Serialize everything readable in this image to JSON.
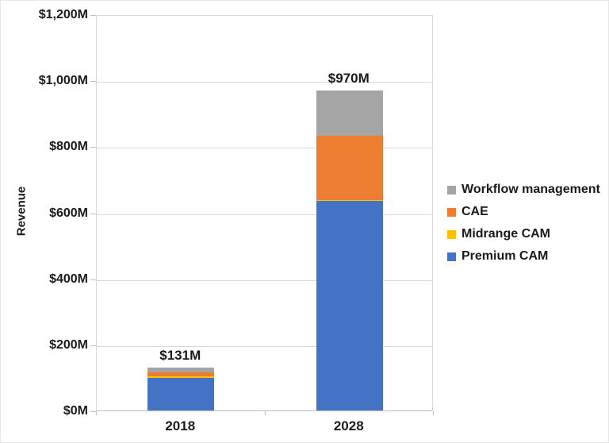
{
  "chart_data": {
    "type": "bar",
    "stacked": true,
    "title": "",
    "xlabel": "",
    "ylabel": "Revenue",
    "categories": [
      "2018",
      "2028"
    ],
    "series": [
      {
        "name": "Premium CAM",
        "color": "#4472C4",
        "values": [
          99,
          635
        ]
      },
      {
        "name": "Midrange CAM",
        "color": "#FFC000",
        "values": [
          4,
          3
        ]
      },
      {
        "name": "CAE",
        "color": "#ED7D31",
        "values": [
          12,
          194
        ]
      },
      {
        "name": "Workflow management",
        "color": "#A5A5A5",
        "values": [
          16,
          138
        ]
      }
    ],
    "totals": [
      131,
      970
    ],
    "total_labels": [
      "$131M",
      "$970M"
    ],
    "ylim": [
      0,
      1200
    ],
    "ytick_step": 200,
    "ytick_labels": [
      "$0M",
      "$200M",
      "$400M",
      "$600M",
      "$800M",
      "$1,000M",
      "$1,200M"
    ],
    "grid": true,
    "legend_position": "right",
    "legend_order": [
      "Workflow management",
      "CAE",
      "Midrange CAM",
      "Premium CAM"
    ]
  },
  "colors": {
    "gridline": "#d9d9d9",
    "axis_line": "#bfbfbf",
    "text": "#1a1a1a",
    "background": "#ffffff"
  }
}
